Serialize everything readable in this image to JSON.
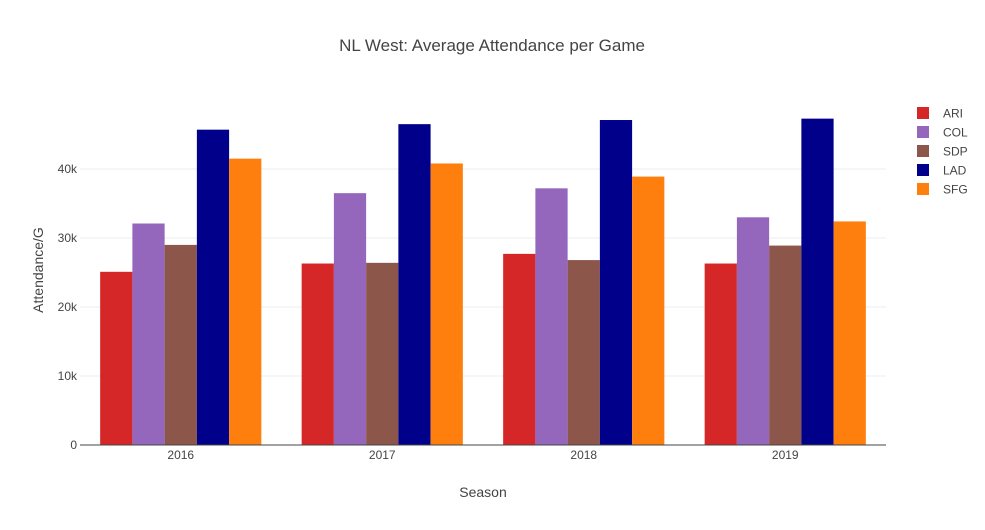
{
  "chart_data": {
    "type": "bar",
    "title": "NL West: Average Attendance per Game",
    "xlabel": "Season",
    "ylabel": "Attendance/G",
    "categories": [
      "2016",
      "2017",
      "2018",
      "2019"
    ],
    "ylim": [
      0,
      50000
    ],
    "yticks": [
      {
        "value": 0,
        "label": "0"
      },
      {
        "value": 10000,
        "label": "10k"
      },
      {
        "value": 20000,
        "label": "20k"
      },
      {
        "value": 30000,
        "label": "30k"
      },
      {
        "value": 40000,
        "label": "40k"
      }
    ],
    "grid": true,
    "legend_position": "right",
    "series": [
      {
        "name": "ARI",
        "color": "#d62728",
        "values": [
          25100,
          26300,
          27700,
          26300
        ]
      },
      {
        "name": "COL",
        "color": "#9467bd",
        "values": [
          32100,
          36500,
          37200,
          33000
        ]
      },
      {
        "name": "SDP",
        "color": "#8c564b",
        "values": [
          29000,
          26400,
          26800,
          28900
        ]
      },
      {
        "name": "LAD",
        "color": "#00008b",
        "values": [
          45700,
          46500,
          47100,
          47300
        ]
      },
      {
        "name": "SFG",
        "color": "#ff7f0e",
        "values": [
          41500,
          40800,
          38900,
          32400
        ]
      }
    ]
  }
}
